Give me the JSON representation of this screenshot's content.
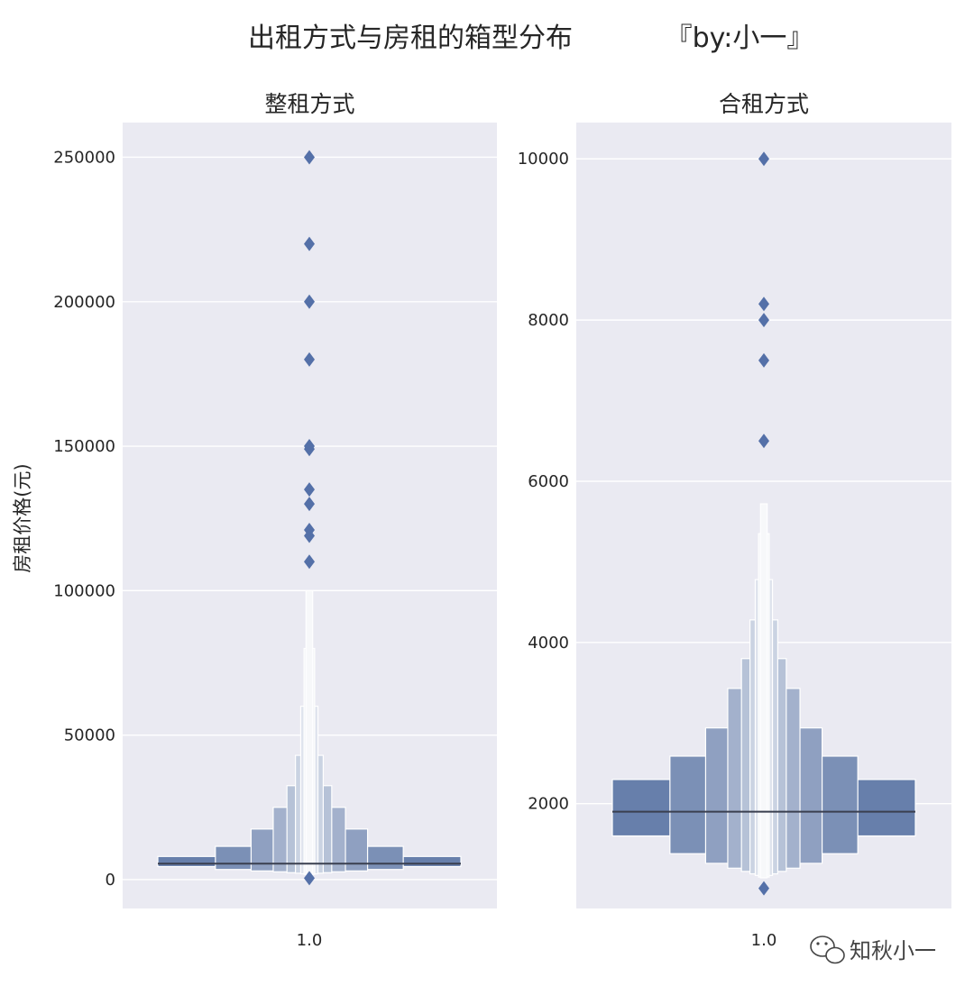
{
  "suptitle": "出租方式与房租的箱型分布",
  "byline": "『by:小一』",
  "ylabel": "房租价格(元)",
  "watermark": "知秋小一",
  "colors": {
    "panel_bg": "#EAEAF2",
    "grid": "#FFFFFF",
    "box_dark": "#5A74A4",
    "marker": "#5470A8",
    "median": "#3A3F4F"
  },
  "chart_data": [
    {
      "type": "boxenplot",
      "title": "整租方式",
      "categories": [
        "1.0"
      ],
      "ylim": [
        -10000,
        262000
      ],
      "yticks": [
        0,
        50000,
        100000,
        150000,
        200000,
        250000
      ],
      "grid": true,
      "median": 5500,
      "boxes": [
        {
          "low": 4500,
          "high": 8000
        },
        {
          "low": 3500,
          "high": 11500
        },
        {
          "low": 3000,
          "high": 17500
        },
        {
          "low": 2700,
          "high": 25000
        },
        {
          "low": 2400,
          "high": 32500
        },
        {
          "low": 2200,
          "high": 43000
        },
        {
          "low": 2000,
          "high": 60000
        },
        {
          "low": 1800,
          "high": 80000
        },
        {
          "low": 1600,
          "high": 100000
        }
      ],
      "outliers": [
        250000,
        220000,
        200000,
        180000,
        150000,
        149000,
        135000,
        130000,
        121000,
        119000,
        110000,
        500
      ]
    },
    {
      "type": "boxenplot",
      "title": "合租方式",
      "categories": [
        "1.0"
      ],
      "ylim": [
        700,
        10450
      ],
      "yticks": [
        2000,
        4000,
        6000,
        8000,
        10000
      ],
      "grid": true,
      "median": 1900,
      "boxes": [
        {
          "low": 1600,
          "high": 2300
        },
        {
          "low": 1380,
          "high": 2590
        },
        {
          "low": 1260,
          "high": 2940
        },
        {
          "low": 1200,
          "high": 3430
        },
        {
          "low": 1160,
          "high": 3800
        },
        {
          "low": 1130,
          "high": 4280
        },
        {
          "low": 1110,
          "high": 4780
        },
        {
          "low": 1090,
          "high": 5350
        },
        {
          "low": 1080,
          "high": 5720
        }
      ],
      "outliers": [
        10000,
        8200,
        8000,
        7500,
        6500,
        950
      ]
    }
  ]
}
